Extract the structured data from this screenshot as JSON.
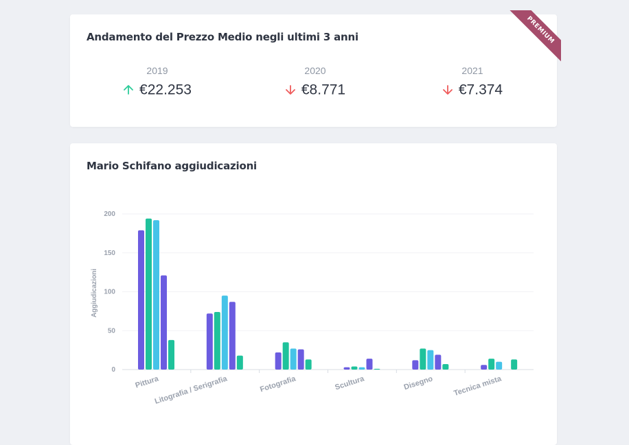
{
  "summary": {
    "title": "Andamento del Prezzo Medio negli ultimi 3 anni",
    "badge": "PREMIUM",
    "stats": [
      {
        "year": "2019",
        "value": "€22.253",
        "trend": "up",
        "color": "#2ecc9a"
      },
      {
        "year": "2020",
        "value": "€8.771",
        "trend": "down",
        "color": "#ef5b5b"
      },
      {
        "year": "2021",
        "value": "€7.374",
        "trend": "down",
        "color": "#ef5b5b"
      }
    ]
  },
  "chart_card": {
    "title": "Mario Schifano aggiudicazioni"
  },
  "chart_data": {
    "type": "bar",
    "ylabel": "Aggiudicazioni",
    "ylim": [
      0,
      200
    ],
    "yticks": [
      0,
      50,
      100,
      150,
      200
    ],
    "categories": [
      "Pittura",
      "Litografia / Serigrafia",
      "Fotografia",
      "Scultura",
      "Disegno",
      "Tecnica mista"
    ],
    "series": [
      {
        "color": "#6b5ce0",
        "values": [
          179,
          72,
          22,
          3,
          12,
          6
        ]
      },
      {
        "color": "#1fc29b",
        "values": [
          194,
          74,
          35,
          4,
          27,
          14
        ]
      },
      {
        "color": "#46c3e8",
        "values": [
          192,
          95,
          27,
          3,
          25,
          10
        ]
      },
      {
        "color": "#6b5ce0",
        "values": [
          121,
          87,
          26,
          14,
          19,
          0
        ]
      },
      {
        "color": "#1fc29b",
        "values": [
          38,
          18,
          13,
          1,
          7,
          13
        ]
      }
    ],
    "grid": true,
    "legend": "none"
  }
}
